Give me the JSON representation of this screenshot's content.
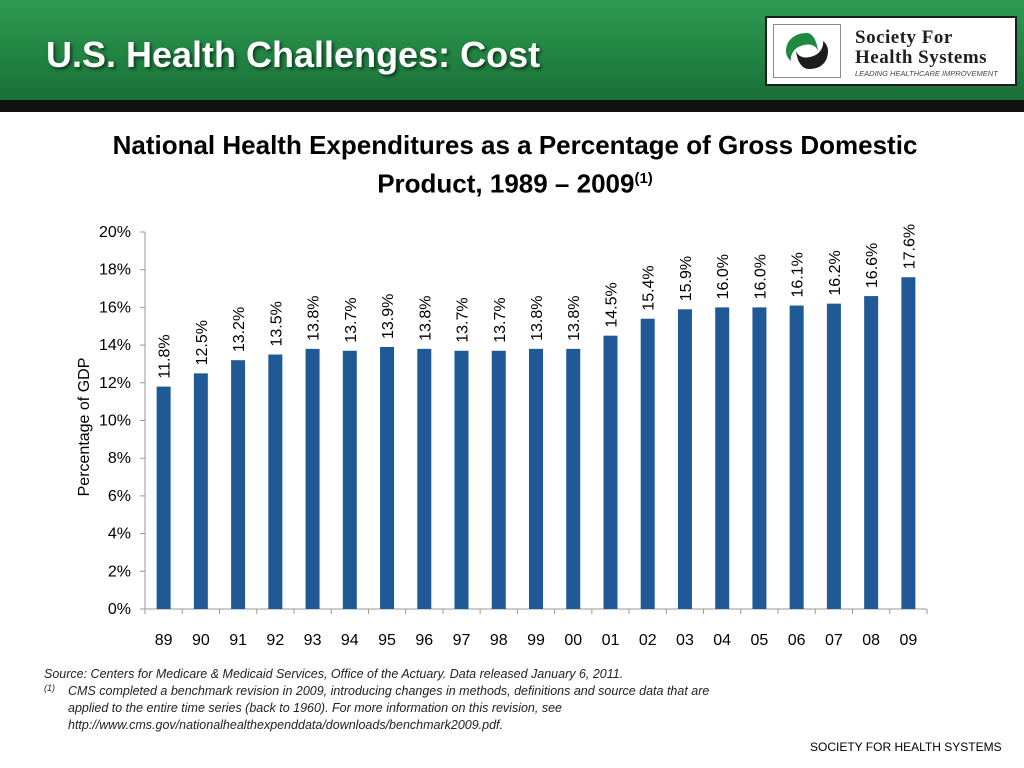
{
  "slide": {
    "title": "U.S. Health Challenges: Cost",
    "footer": "SOCIETY FOR HEALTH SYSTEMS"
  },
  "logo": {
    "line1": "Society For",
    "line2": "Health Systems",
    "tagline": "LEADING HEALTHCARE IMPROVEMENT",
    "icon": "shs-swirl-logo-icon",
    "colors": {
      "green": "#1f8a3f",
      "dark": "#1d1d1d"
    }
  },
  "colors": {
    "header_green": "#218442",
    "bar_blue": "#1f5a96"
  },
  "chart_data": {
    "type": "bar",
    "title": "National Health Expenditures as a Percentage of Gross Domestic Product, 1989 – 2009",
    "title_main": "National Health Expenditures as a Percentage of Gross Domestic Product, 1989 – 2009",
    "title_sup": "(1)",
    "xlabel": "",
    "ylabel": "Percentage of GDP",
    "ylim": [
      0,
      20
    ],
    "yticks": [
      "0%",
      "2%",
      "4%",
      "6%",
      "8%",
      "10%",
      "12%",
      "14%",
      "16%",
      "18%",
      "20%"
    ],
    "categories": [
      "89",
      "90",
      "91",
      "92",
      "93",
      "94",
      "95",
      "96",
      "97",
      "98",
      "99",
      "00",
      "01",
      "02",
      "03",
      "04",
      "05",
      "06",
      "07",
      "08",
      "09"
    ],
    "values": [
      11.8,
      12.5,
      13.2,
      13.5,
      13.8,
      13.7,
      13.9,
      13.8,
      13.7,
      13.7,
      13.8,
      13.8,
      14.5,
      15.4,
      15.9,
      16.0,
      16.0,
      16.1,
      16.2,
      16.6,
      17.6
    ],
    "data_labels": [
      "11.8%",
      "12.5%",
      "13.2%",
      "13.5%",
      "13.8%",
      "13.7%",
      "13.9%",
      "13.8%",
      "13.7%",
      "13.7%",
      "13.8%",
      "13.8%",
      "14.5%",
      "15.4%",
      "15.9%",
      "16.0%",
      "16.0%",
      "16.1%",
      "16.2%",
      "16.6%",
      "17.6%"
    ],
    "grid": false,
    "legend": "none",
    "bar_color": "#1f5a96"
  },
  "notes": {
    "source": "Source: Centers for Medicare & Medicaid Services, Office of the Actuary.  Data released January 6, 2011.",
    "footnote_marker": "(1)",
    "footnote_text": "CMS completed a benchmark revision in 2009, introducing changes in methods, definitions and source data that are applied to the entire time series (back to 1960).  For more information on this revision, see http://www.cms.gov/nationalhealthexpenddata/downloads/benchmark2009.pdf."
  }
}
